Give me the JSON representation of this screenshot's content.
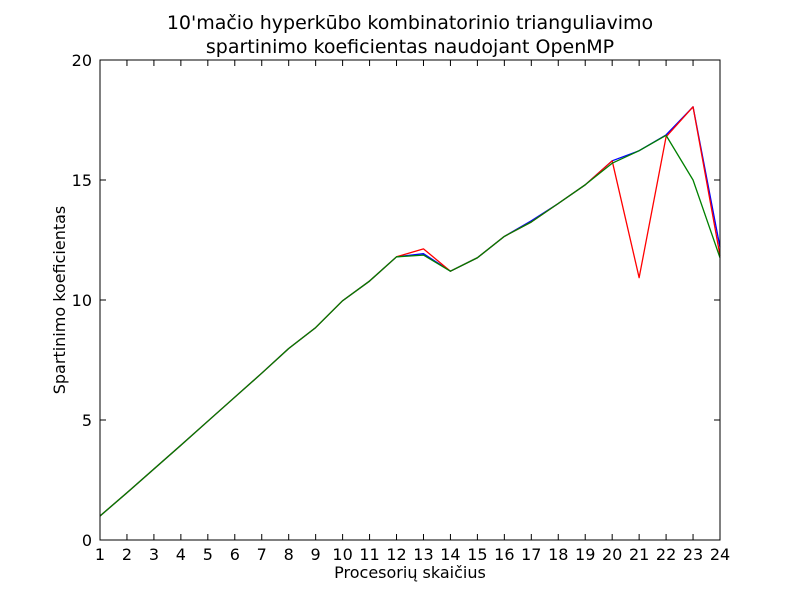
{
  "chart_data": {
    "type": "line",
    "title": [
      "10'mačio hyperkūbo kombinatorinio trianguliavimo",
      "spartinimo koeficientas naudojant OpenMP"
    ],
    "xlabel": "Procesorių skaičius",
    "ylabel": "Spartinimo koeficientas",
    "xlim": [
      1,
      24
    ],
    "ylim": [
      0,
      20
    ],
    "xticks": [
      1,
      2,
      3,
      4,
      5,
      6,
      7,
      8,
      9,
      10,
      11,
      12,
      13,
      14,
      15,
      16,
      17,
      18,
      19,
      20,
      21,
      22,
      23,
      24
    ],
    "yticks": [
      0,
      5,
      10,
      15,
      20
    ],
    "grid": false,
    "x": [
      1,
      2,
      3,
      4,
      5,
      6,
      7,
      8,
      9,
      10,
      11,
      12,
      13,
      14,
      15,
      16,
      17,
      18,
      19,
      20,
      21,
      22,
      23,
      24
    ],
    "series": [
      {
        "color": "#0000ff",
        "values": [
          1.0,
          1.97,
          2.96,
          3.95,
          4.95,
          5.95,
          6.95,
          7.98,
          8.85,
          9.97,
          10.79,
          11.8,
          11.93,
          11.2,
          11.76,
          12.65,
          13.3,
          14.02,
          14.8,
          15.8,
          16.22,
          16.88,
          18.05,
          12.2
        ]
      },
      {
        "color": "#ff0000",
        "values": [
          1.0,
          1.97,
          2.96,
          3.95,
          4.95,
          5.95,
          6.95,
          7.98,
          8.85,
          9.97,
          10.79,
          11.8,
          12.13,
          11.2,
          11.76,
          12.65,
          13.25,
          14.02,
          14.8,
          15.8,
          10.93,
          16.8,
          18.05,
          11.85
        ]
      },
      {
        "color": "#008000",
        "values": [
          1.0,
          1.97,
          2.96,
          3.95,
          4.95,
          5.95,
          6.95,
          7.98,
          8.85,
          9.97,
          10.79,
          11.8,
          11.87,
          11.2,
          11.76,
          12.65,
          13.25,
          14.02,
          14.8,
          15.7,
          16.22,
          16.86,
          15.0,
          11.76
        ]
      }
    ]
  }
}
